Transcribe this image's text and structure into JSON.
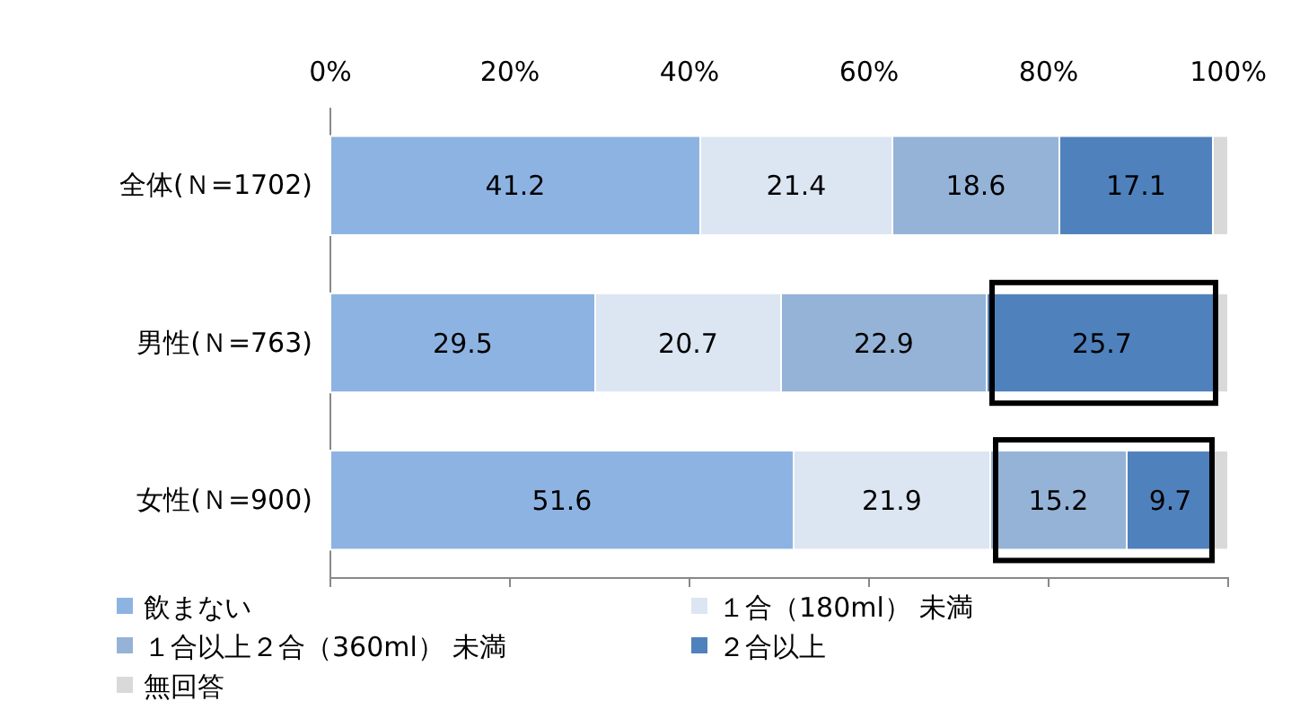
{
  "chart_data": {
    "type": "bar",
    "orientation": "horizontal",
    "stacked": true,
    "categories": [
      "全体(Ｎ=1702)",
      "男性(Ｎ=763)",
      "女性(Ｎ=900)"
    ],
    "series": [
      {
        "name": "飲まない",
        "color": "#8db3e2",
        "values": [
          41.2,
          29.5,
          51.6
        ],
        "value_labels": [
          "41.2",
          "29.5",
          "51.6"
        ]
      },
      {
        "name": "１合（180ml） 未満",
        "color": "#dce6f2",
        "values": [
          21.4,
          20.7,
          21.9
        ],
        "value_labels": [
          "21.4",
          "20.7",
          "21.9"
        ]
      },
      {
        "name": "１合以上２合（360ml） 未満",
        "color": "#95b3d7",
        "values": [
          18.6,
          22.9,
          15.2
        ],
        "value_labels": [
          "18.6",
          "22.9",
          "15.2"
        ]
      },
      {
        "name": "２合以上",
        "color": "#4f81bd",
        "values": [
          17.1,
          25.7,
          9.7
        ],
        "value_labels": [
          "17.1",
          "25.7",
          "9.7"
        ]
      },
      {
        "name": "無回答",
        "color": "#d9d9d9",
        "values": [
          1.7,
          1.2,
          1.6
        ],
        "value_labels": [
          null,
          null,
          null
        ]
      }
    ],
    "xlim": [
      0,
      100
    ],
    "xticks": [
      {
        "value": 0,
        "label": "0%"
      },
      {
        "value": 20,
        "label": "20%"
      },
      {
        "value": 40,
        "label": "40%"
      },
      {
        "value": 60,
        "label": "60%"
      },
      {
        "value": 80,
        "label": "80%"
      },
      {
        "value": 100,
        "label": "100%"
      }
    ],
    "legend": "bottom"
  }
}
